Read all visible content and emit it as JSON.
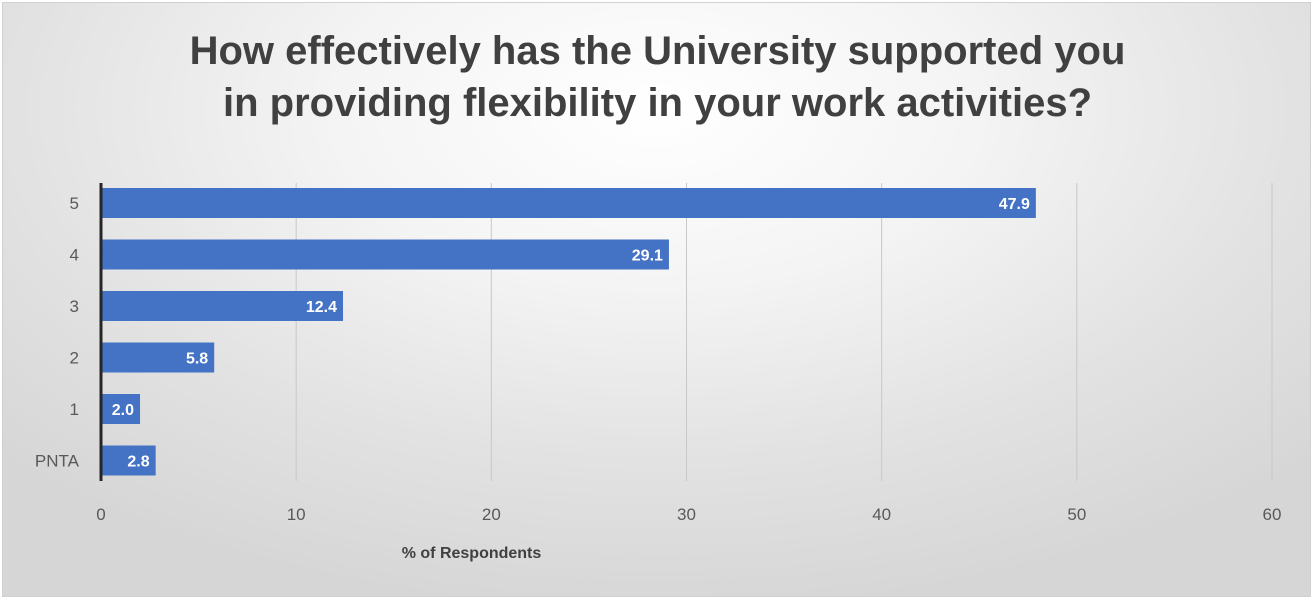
{
  "chart_data": {
    "type": "bar",
    "orientation": "horizontal",
    "title_line1": "How effectively has the University supported you",
    "title_line2": "in providing flexibility in your work activities?",
    "xlabel": "% of Respondents",
    "ylabel": "",
    "categories": [
      "5",
      "4",
      "3",
      "2",
      "1",
      "PNTA"
    ],
    "values": [
      47.9,
      29.1,
      12.4,
      5.8,
      2.0,
      2.8
    ],
    "data_labels": [
      "47.9",
      "29.1",
      "12.4",
      "5.8",
      "2.0",
      "2.8"
    ],
    "xlim": [
      0,
      60
    ],
    "x_ticks": [
      0,
      10,
      20,
      30,
      40,
      50,
      60
    ],
    "x_tick_labels": [
      "0",
      "10",
      "20",
      "30",
      "40",
      "50",
      "60"
    ],
    "grid": "vertical",
    "legend": "none",
    "colors": {
      "bar": "#4472C4",
      "grid": "#c8c8c8",
      "axis": "#262626"
    }
  }
}
